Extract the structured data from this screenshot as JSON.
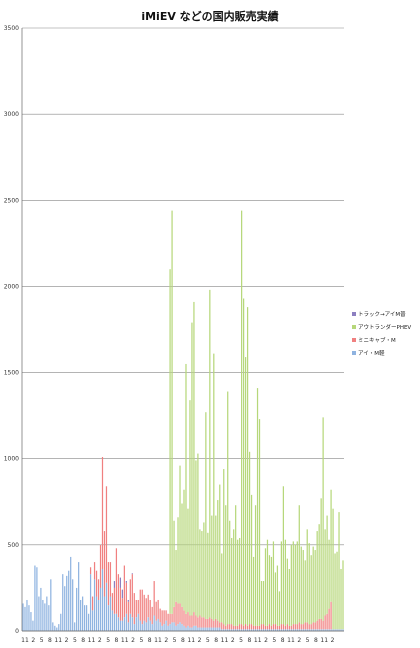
{
  "chart_data": {
    "type": "bar",
    "stacked": true,
    "title": "iMiEV などの国内販売実績",
    "xlabel": "",
    "ylabel": "",
    "ylim": [
      0,
      3500
    ],
    "y_ticks": [
      0,
      500,
      1000,
      1500,
      2000,
      2500,
      3000,
      3500
    ],
    "grid": true,
    "legend_position": "right",
    "x_tick_labels": [
      "11",
      "2",
      "5",
      "8",
      "11",
      "2",
      "5",
      "8",
      "11",
      "2",
      "5",
      "8",
      "11",
      "2",
      "5",
      "8",
      "11",
      "2",
      "5",
      "8",
      "11",
      "2",
      "5",
      "8",
      "11",
      "2",
      "5",
      "8",
      "11",
      "2",
      "5",
      "8",
      "11",
      "2",
      "5",
      "8",
      "11",
      "2"
    ],
    "series": [
      {
        "name": "トラック→アイM普",
        "color": "#8c7fc0",
        "values": [
          0,
          0,
          0,
          0,
          0,
          0,
          0,
          0,
          0,
          0,
          0,
          0,
          0,
          0,
          0,
          0,
          0,
          0,
          0,
          0,
          0,
          0,
          0,
          0,
          0,
          0,
          0,
          0,
          0,
          0,
          0,
          0,
          0,
          0,
          0,
          0,
          0,
          0,
          0,
          0,
          0,
          0,
          0,
          0,
          0,
          0,
          40,
          0,
          0,
          60,
          50,
          0,
          10,
          10,
          0,
          5,
          0,
          0,
          0,
          0,
          0,
          0,
          0,
          0,
          0,
          0,
          0,
          0,
          0,
          0,
          0,
          0,
          0,
          0,
          0,
          0,
          0,
          0,
          0,
          0,
          0,
          0,
          0,
          0,
          0,
          0,
          0,
          0,
          0,
          0,
          0,
          0,
          0,
          0,
          0,
          0,
          0,
          0,
          0,
          0,
          0,
          0,
          0,
          0,
          0,
          0,
          0,
          0,
          0,
          0,
          0,
          0,
          0,
          0,
          0,
          0,
          0,
          0,
          0,
          0,
          0,
          0,
          0,
          0,
          0,
          0,
          0,
          0,
          0,
          0,
          0,
          0,
          0,
          0,
          0,
          0,
          0,
          0,
          0,
          0,
          0,
          0,
          0,
          0,
          0,
          0,
          0,
          0,
          0,
          0,
          0,
          0,
          0,
          0,
          0,
          0,
          0,
          0,
          0,
          0,
          0,
          0
        ]
      },
      {
        "name": "アウトランダーPHEV",
        "color": "#b6d77a",
        "values": [
          0,
          0,
          0,
          0,
          0,
          0,
          0,
          0,
          0,
          0,
          0,
          0,
          0,
          0,
          0,
          0,
          0,
          0,
          0,
          0,
          0,
          0,
          0,
          0,
          0,
          0,
          0,
          0,
          0,
          0,
          0,
          0,
          0,
          0,
          0,
          0,
          0,
          0,
          0,
          0,
          0,
          0,
          0,
          0,
          0,
          0,
          0,
          0,
          0,
          0,
          0,
          0,
          0,
          0,
          0,
          0,
          0,
          0,
          0,
          0,
          0,
          0,
          0,
          0,
          0,
          0,
          0,
          0,
          0,
          0,
          0,
          0,
          0,
          0,
          2000,
          2340,
          500,
          300,
          500,
          800,
          600,
          700,
          1450,
          600,
          1250,
          1700,
          1800,
          900,
          950,
          500,
          500,
          550,
          1200,
          500,
          1900,
          600,
          1550,
          600,
          700,
          800,
          400,
          900,
          700,
          1350,
          600,
          500,
          560,
          700,
          500,
          500,
          2400,
          1900,
          1550,
          1850,
          1000,
          750,
          400,
          700,
          1380,
          1200,
          250,
          250,
          450,
          500,
          400,
          400,
          480,
          300,
          350,
          200,
          480,
          800,
          500,
          380,
          330,
          470,
          480,
          460,
          480,
          680,
          450,
          430,
          360,
          540,
          470,
          400,
          440,
          420,
          520,
          550,
          700,
          1180,
          500,
          570,
          400,
          650,
          700,
          440,
          450,
          680,
          350,
          400,
          400,
          600
        ]
      },
      {
        "name": "ミニキャブ・M",
        "color": "#f08080",
        "values": [
          0,
          0,
          0,
          0,
          0,
          0,
          0,
          0,
          0,
          0,
          0,
          0,
          0,
          0,
          0,
          0,
          0,
          0,
          0,
          0,
          0,
          0,
          0,
          0,
          0,
          0,
          0,
          0,
          0,
          0,
          0,
          0,
          0,
          0,
          40,
          80,
          100,
          150,
          120,
          250,
          650,
          380,
          560,
          250,
          200,
          100,
          150,
          380,
          250,
          190,
          130,
          300,
          180,
          120,
          200,
          250,
          180,
          100,
          80,
          180,
          200,
          150,
          140,
          130,
          120,
          100,
          200,
          110,
          110,
          80,
          90,
          80,
          60,
          70,
          60,
          50,
          90,
          140,
          120,
          110,
          100,
          90,
          80,
          80,
          70,
          70,
          80,
          60,
          60,
          70,
          60,
          60,
          50,
          50,
          60,
          50,
          40,
          50,
          40,
          30,
          40,
          30,
          20,
          30,
          30,
          30,
          20,
          20,
          20,
          30,
          30,
          20,
          30,
          20,
          30,
          30,
          20,
          20,
          20,
          20,
          30,
          30,
          20,
          20,
          30,
          20,
          30,
          30,
          20,
          20,
          30,
          30,
          20,
          30,
          20,
          20,
          30,
          30,
          30,
          40,
          30,
          30,
          40,
          40,
          30,
          30,
          40,
          40,
          50,
          60,
          60,
          50,
          80,
          90,
          120,
          160
        ]
      },
      {
        "name": "アイ・M軽",
        "color": "#8fb3e0",
        "values": [
          160,
          140,
          180,
          150,
          110,
          60,
          380,
          370,
          200,
          250,
          180,
          160,
          200,
          150,
          300,
          50,
          30,
          20,
          40,
          100,
          330,
          260,
          320,
          350,
          430,
          300,
          50,
          250,
          400,
          180,
          200,
          150,
          150,
          100,
          330,
          120,
          300,
          200,
          180,
          250,
          360,
          200,
          280,
          150,
          200,
          120,
          100,
          100,
          80,
          60,
          60,
          80,
          100,
          50,
          100,
          80,
          40,
          80,
          100,
          60,
          40,
          60,
          50,
          80,
          60,
          40,
          90,
          60,
          70,
          50,
          30,
          40,
          60,
          30,
          40,
          50,
          50,
          30,
          40,
          50,
          40,
          30,
          20,
          30,
          20,
          20,
          30,
          30,
          20,
          20,
          20,
          20,
          20,
          20,
          20,
          20,
          20,
          20,
          20,
          20,
          10,
          10,
          10,
          10,
          10,
          10,
          10,
          10,
          10,
          10,
          10,
          10,
          10,
          10,
          10,
          10,
          10,
          10,
          10,
          10,
          10,
          10,
          10,
          10,
          10,
          10,
          10,
          10,
          10,
          10,
          10,
          10,
          10,
          10,
          10,
          10,
          10,
          10,
          10,
          10,
          10,
          10,
          10,
          10,
          10,
          10,
          10,
          10,
          10,
          10,
          10,
          10,
          10,
          10,
          10,
          10,
          10,
          10,
          10,
          10,
          10,
          10
        ]
      }
    ]
  }
}
